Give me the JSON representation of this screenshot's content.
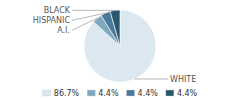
{
  "chart_data": {
    "type": "pie",
    "categories": [
      "WHITE",
      "A.I.",
      "HISPANIC",
      "BLACK"
    ],
    "values": [
      86.7,
      4.4,
      4.4,
      4.4
    ],
    "colors": [
      "#dce8f0",
      "#7fa8bf",
      "#4a7a99",
      "#2a566e"
    ],
    "value_labels": [
      "86.7%",
      "4.4%",
      "4.4%",
      "4.4%"
    ],
    "legend": "bottom"
  }
}
